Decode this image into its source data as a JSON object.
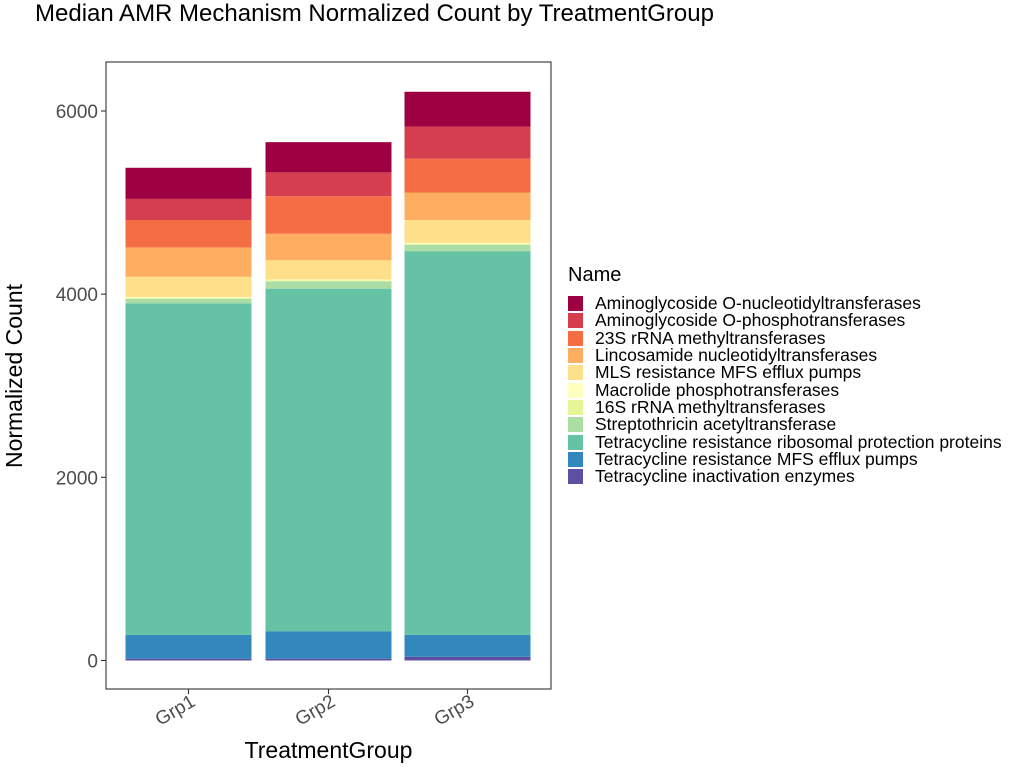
{
  "chart_data": {
    "type": "bar",
    "stacked": true,
    "title": "Median AMR Mechanism Normalized Count by TreatmentGroup",
    "xlabel": "TreatmentGroup",
    "ylabel": "Normalized Count",
    "categories": [
      "Grp1",
      "Grp2",
      "Grp3"
    ],
    "ylim": [
      -300,
      6540
    ],
    "yticks": [
      0,
      2000,
      4000,
      6000
    ],
    "ytick_labels": [
      "0",
      "2000",
      "4000",
      "6000"
    ],
    "grid": false,
    "legend_position": "right",
    "legend_title": "Name",
    "series": [
      {
        "name": "Aminoglycoside O-nucleotidyltransferases",
        "color": "#9E0142",
        "values": [
          340,
          330,
          380
        ]
      },
      {
        "name": "Aminoglycoside O-phosphotransferases",
        "color": "#D53E4F",
        "values": [
          230,
          260,
          350
        ]
      },
      {
        "name": "23S rRNA methyltransferases",
        "color": "#F46D43",
        "values": [
          300,
          410,
          370
        ]
      },
      {
        "name": "Lincosamide nucleotidyltransferases",
        "color": "#FDAE61",
        "values": [
          320,
          290,
          300
        ]
      },
      {
        "name": "MLS resistance MFS efflux pumps",
        "color": "#FEE08B",
        "values": [
          220,
          210,
          250
        ]
      },
      {
        "name": "Macrolide phosphotransferases",
        "color": "#FFFFBF",
        "values": [
          10,
          10,
          10
        ]
      },
      {
        "name": "16S rRNA methyltransferases",
        "color": "#E6F598",
        "values": [
          10,
          10,
          10
        ]
      },
      {
        "name": "Streptothricin acetyltransferase",
        "color": "#ABDDA4",
        "values": [
          50,
          80,
          70
        ]
      },
      {
        "name": "Tetracycline resistance ribosomal protection proteins",
        "color": "#66C2A5",
        "values": [
          3620,
          3740,
          4190
        ]
      },
      {
        "name": "Tetracycline resistance MFS efflux pumps",
        "color": "#3288BD",
        "values": [
          260,
          300,
          240
        ]
      },
      {
        "name": "Tetracycline inactivation enzymes",
        "color": "#5E4FA2",
        "values": [
          20,
          20,
          40
        ]
      }
    ]
  }
}
